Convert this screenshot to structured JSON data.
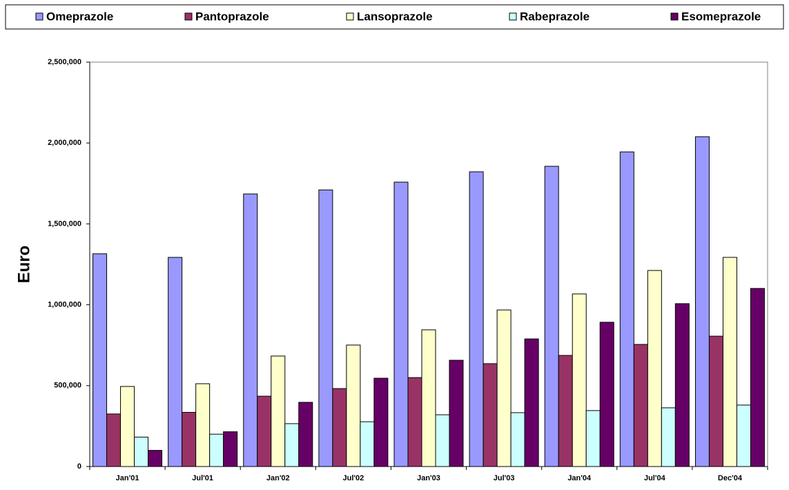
{
  "chart_data": {
    "type": "bar",
    "y_label": "Euro",
    "categories": [
      "Jan'01",
      "Jul'01",
      "Jan'02",
      "Jul'02",
      "Jan'03",
      "Jul'03",
      "Jan'04",
      "Jul'04",
      "Dec'04"
    ],
    "series": [
      {
        "name": "Omeprazole",
        "color": "#9999ff",
        "values": [
          1315000,
          1293000,
          1685000,
          1710000,
          1758000,
          1822000,
          1856000,
          1945000,
          2039000
        ]
      },
      {
        "name": "Pantoprazole",
        "color": "#993366",
        "values": [
          325000,
          335000,
          435000,
          482000,
          550000,
          636000,
          687000,
          755000,
          806000
        ]
      },
      {
        "name": "Lansoprazole",
        "color": "#ffffcc",
        "values": [
          495000,
          512000,
          683000,
          751000,
          845000,
          968000,
          1067000,
          1212000,
          1293000
        ]
      },
      {
        "name": "Rabeprazole",
        "color": "#ccffff",
        "values": [
          182000,
          200000,
          265000,
          277000,
          320000,
          333000,
          346000,
          363000,
          380000
        ]
      },
      {
        "name": "Esomeprazole",
        "color": "#660066",
        "values": [
          100000,
          215000,
          397000,
          546000,
          657000,
          789000,
          892000,
          1007000,
          1101000
        ]
      }
    ],
    "ylim": [
      0,
      2500000
    ],
    "yticks": [
      0,
      {
        "value": 500000,
        "label": "500,000"
      },
      {
        "value": 1000000,
        "label": "1,000,000"
      },
      {
        "value": 1500000,
        "label": "1,500,000"
      },
      {
        "value": 2000000,
        "label": "2,000,000"
      },
      {
        "value": 2500000,
        "label": "2,500,000"
      }
    ],
    "legend": "top"
  }
}
